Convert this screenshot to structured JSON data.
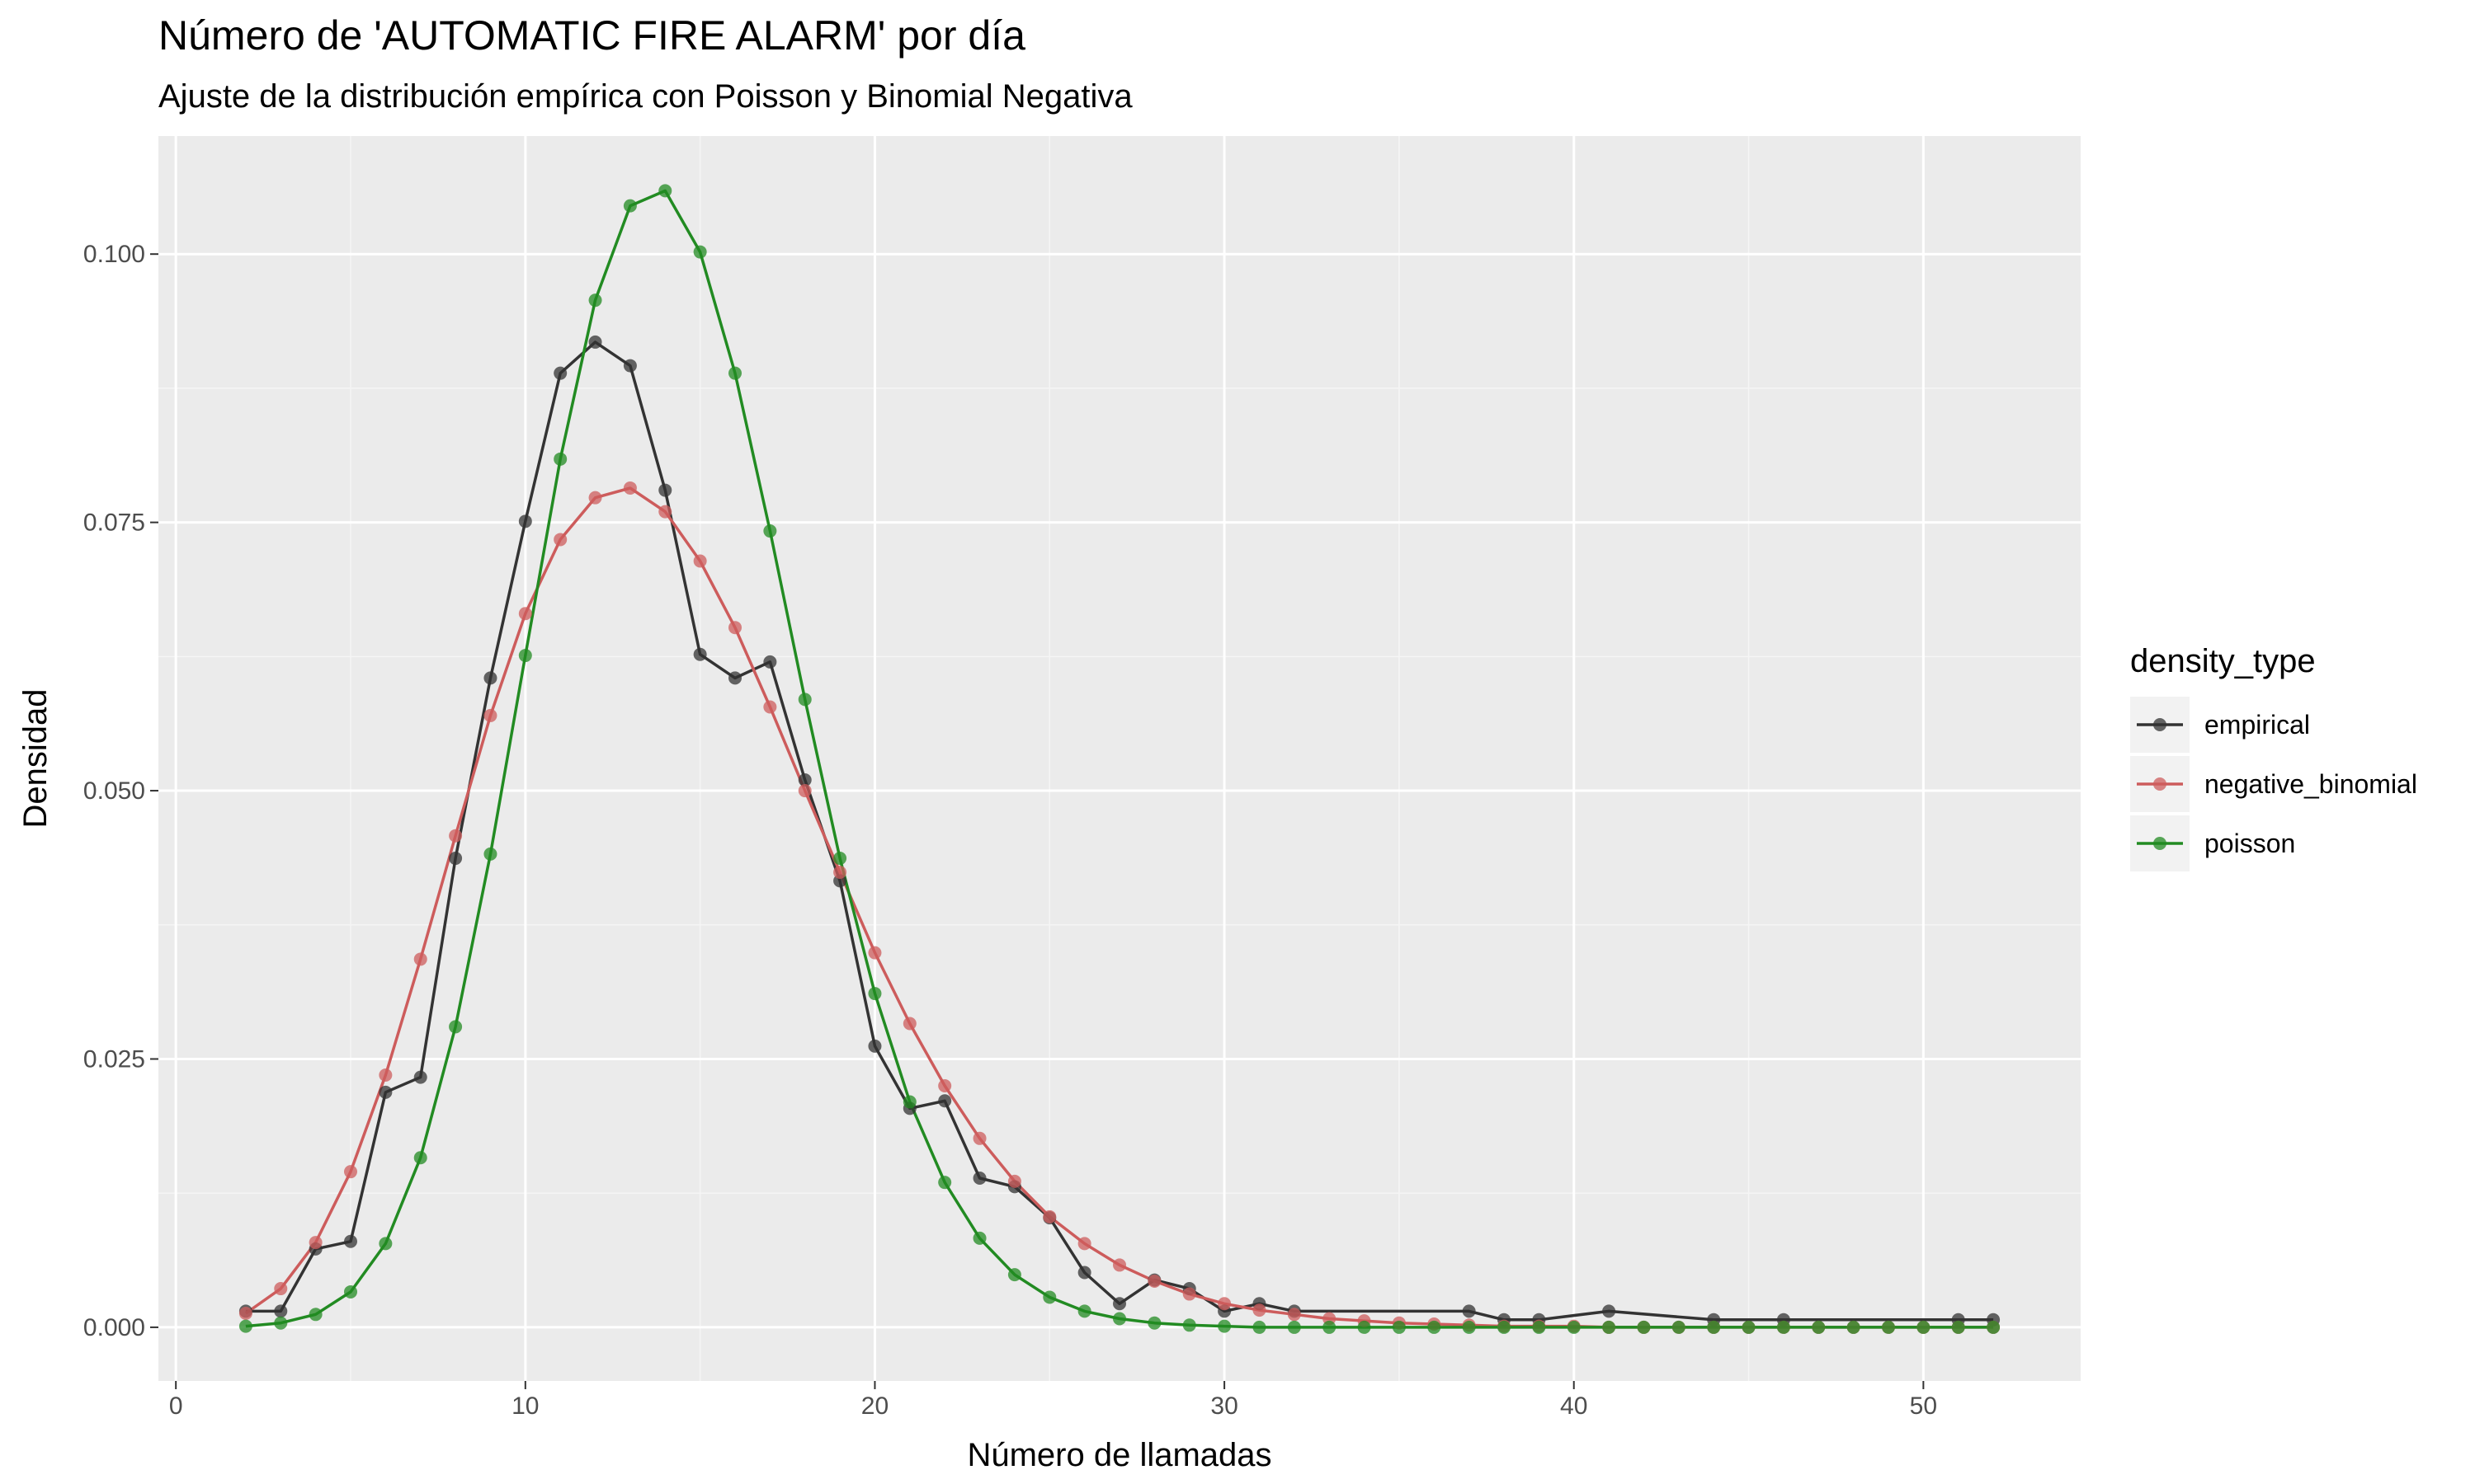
{
  "chart_data": {
    "type": "line",
    "title": "Número de 'AUTOMATIC FIRE ALARM' por día",
    "subtitle": "Ajuste de la distribución empírica con Poisson y Binomial Negativa",
    "xlabel": "Número de llamadas",
    "ylabel": "Densidad",
    "xlim": [
      -0.5,
      54.5
    ],
    "ylim": [
      -0.005,
      0.111
    ],
    "x_ticks": [
      0,
      10,
      20,
      30,
      40,
      50
    ],
    "x_tick_labels": [
      "0",
      "10",
      "20",
      "30",
      "40",
      "50"
    ],
    "y_ticks": [
      0.0,
      0.025,
      0.05,
      0.075,
      0.1
    ],
    "y_tick_labels": [
      "0.000",
      "0.025",
      "0.050",
      "0.075",
      "0.100"
    ],
    "grid": true,
    "legend": {
      "title": "density_type",
      "position": "right"
    },
    "series": [
      {
        "name": "empirical",
        "color": "#333333",
        "x": [
          2,
          3,
          4,
          5,
          6,
          7,
          8,
          9,
          10,
          11,
          12,
          13,
          14,
          15,
          16,
          17,
          18,
          19,
          20,
          21,
          22,
          23,
          24,
          25,
          26,
          27,
          28,
          29,
          30,
          31,
          32,
          37,
          38,
          39,
          41,
          44,
          46,
          51,
          52
        ],
        "y": [
          0.0015,
          0.0015,
          0.0073,
          0.008,
          0.0219,
          0.0233,
          0.0437,
          0.0605,
          0.0751,
          0.0889,
          0.0918,
          0.0896,
          0.078,
          0.0627,
          0.0605,
          0.062,
          0.051,
          0.0416,
          0.0262,
          0.0204,
          0.0211,
          0.0139,
          0.0131,
          0.0102,
          0.0051,
          0.0022,
          0.0044,
          0.0036,
          0.0015,
          0.0022,
          0.0015,
          0.0015,
          0.0007,
          0.0007,
          0.0015,
          0.0007,
          0.0007,
          0.0007,
          0.0007
        ]
      },
      {
        "name": "negative_binomial",
        "color": "#CD5C5C",
        "x": [
          2,
          3,
          4,
          5,
          6,
          7,
          8,
          9,
          10,
          11,
          12,
          13,
          14,
          15,
          16,
          17,
          18,
          19,
          20,
          21,
          22,
          23,
          24,
          25,
          26,
          27,
          28,
          29,
          30,
          31,
          32,
          33,
          34,
          35,
          36,
          37,
          38,
          39,
          40,
          41,
          42,
          43,
          44,
          45,
          46,
          47,
          48,
          49,
          50,
          51,
          52
        ],
        "y": [
          0.0013,
          0.0036,
          0.0079,
          0.0145,
          0.0235,
          0.0343,
          0.0458,
          0.057,
          0.0665,
          0.0734,
          0.0773,
          0.0782,
          0.076,
          0.0714,
          0.0652,
          0.0578,
          0.05,
          0.0424,
          0.0349,
          0.0283,
          0.0225,
          0.0176,
          0.0136,
          0.0103,
          0.0078,
          0.0058,
          0.0043,
          0.0031,
          0.0022,
          0.0016,
          0.0012,
          0.0008,
          0.0006,
          0.0004,
          0.0003,
          0.0002,
          0.0001,
          0.0001,
          0.0001,
          0.0,
          0.0,
          0.0,
          0.0,
          0.0,
          0.0,
          0.0,
          0.0,
          0.0,
          0.0,
          0.0,
          0.0
        ]
      },
      {
        "name": "poisson",
        "color": "#228B22",
        "x": [
          2,
          3,
          4,
          5,
          6,
          7,
          8,
          9,
          10,
          11,
          12,
          13,
          14,
          15,
          16,
          17,
          18,
          19,
          20,
          21,
          22,
          23,
          24,
          25,
          26,
          27,
          28,
          29,
          30,
          31,
          32,
          33,
          34,
          35,
          36,
          37,
          38,
          39,
          40,
          41,
          42,
          43,
          44,
          45,
          46,
          47,
          48,
          49,
          50,
          51,
          52
        ],
        "y": [
          0.0001,
          0.0004,
          0.0012,
          0.0033,
          0.0078,
          0.0158,
          0.028,
          0.0441,
          0.0626,
          0.0809,
          0.0957,
          0.1045,
          0.1059,
          0.1002,
          0.0889,
          0.0742,
          0.0585,
          0.0437,
          0.0311,
          0.021,
          0.0135,
          0.0083,
          0.0049,
          0.0028,
          0.0015,
          0.0008,
          0.0004,
          0.0002,
          0.0001,
          0.0,
          0.0,
          0.0,
          0.0,
          0.0,
          0.0,
          0.0,
          0.0,
          0.0,
          0.0,
          0.0,
          0.0,
          0.0,
          0.0,
          0.0,
          0.0,
          0.0,
          0.0,
          0.0,
          0.0,
          0.0,
          0.0
        ]
      }
    ]
  },
  "colors": {
    "panel_background": "#EBEBEB",
    "grid_major": "#FFFFFF",
    "grid_minor": "#F5F5F5",
    "tick_text": "#4D4D4D"
  }
}
